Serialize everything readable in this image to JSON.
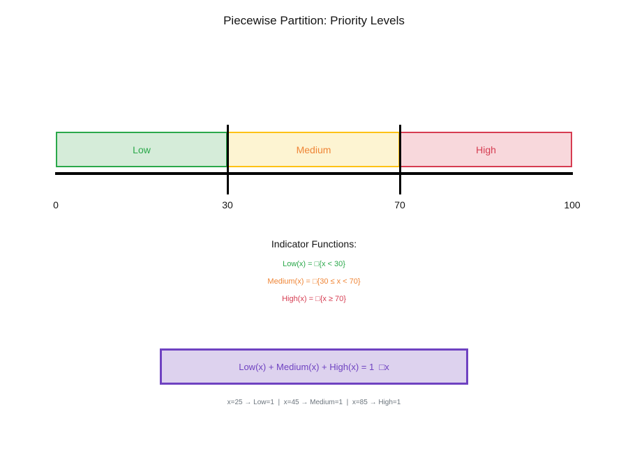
{
  "title": "Piecewise Partition: Priority Levels",
  "partition": {
    "segments": [
      {
        "label": "Low",
        "fill": "#d5ecd9",
        "border": "#2aa84a",
        "text_color": "#2aa84a"
      },
      {
        "label": "Medium",
        "fill": "#fdf4d2",
        "border": "#fdc115",
        "text_color": "#ef8536"
      },
      {
        "label": "High",
        "fill": "#f8d8dc",
        "border": "#d63c51",
        "text_color": "#d63c51"
      }
    ],
    "axis_ticks": [
      "0",
      "30",
      "70",
      "100"
    ],
    "boundaries": [
      "30",
      "70"
    ]
  },
  "indicator": {
    "header": "Indicator Functions:",
    "lines": [
      {
        "text": "Low(x) = □{x < 30}",
        "color": "#2aa84a"
      },
      {
        "text": "Medium(x) = □{30 ≤ x < 70}",
        "color": "#ef8536"
      },
      {
        "text": "High(x) = □{x ≥ 70}",
        "color": "#d63c51"
      }
    ]
  },
  "sum_box": {
    "text": "Low(x) + Medium(x) + High(x) = 1  □x",
    "fill": "#ddd2ee",
    "border": "#6f42c1",
    "text_color": "#6f42c1"
  },
  "examples_line": "x=25 → Low=1  |  x=45 → Medium=1  |  x=85 → High=1",
  "colors": {
    "axis": "#000000",
    "divider": "#000000",
    "title": "#141414",
    "examples": "#6c757d"
  }
}
